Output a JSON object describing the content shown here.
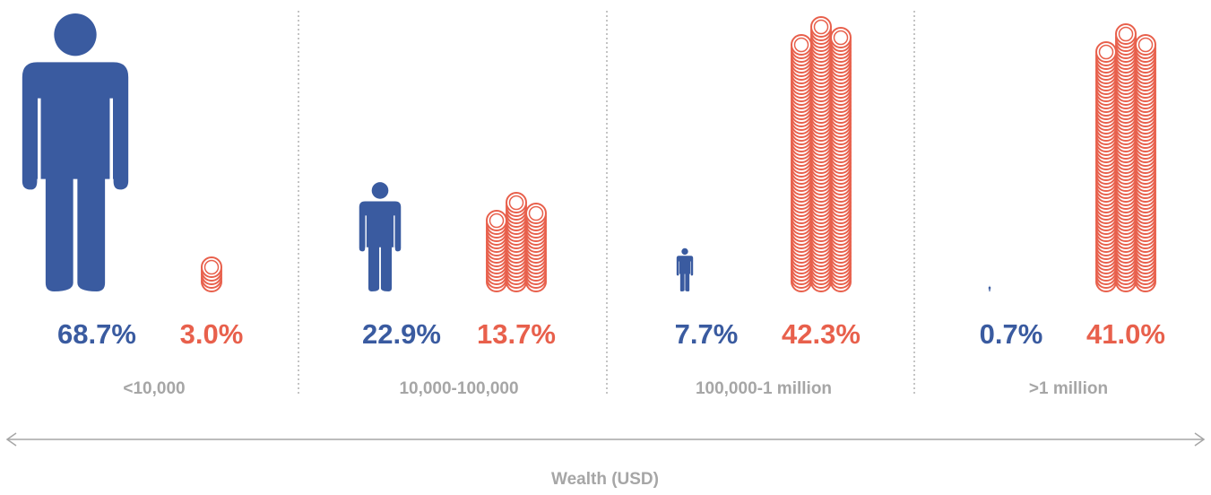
{
  "chart_data": {
    "type": "pictogram",
    "categories": [
      "<10,000",
      "10,000-100,000",
      "100,000-1 million",
      ">1 million"
    ],
    "series": [
      {
        "color": "#3a5ba0",
        "values": [
          68.7,
          22.9,
          7.7,
          0.7
        ],
        "value_labels": [
          "68.7%",
          "22.9%",
          "7.7%",
          "0.7%"
        ]
      },
      {
        "color": "#e8604c",
        "values": [
          3.0,
          13.7,
          42.3,
          41.0
        ],
        "value_labels": [
          "3.0%",
          "13.7%",
          "42.3%",
          "41.0%"
        ]
      }
    ],
    "x_label": "Wealth (USD)"
  }
}
